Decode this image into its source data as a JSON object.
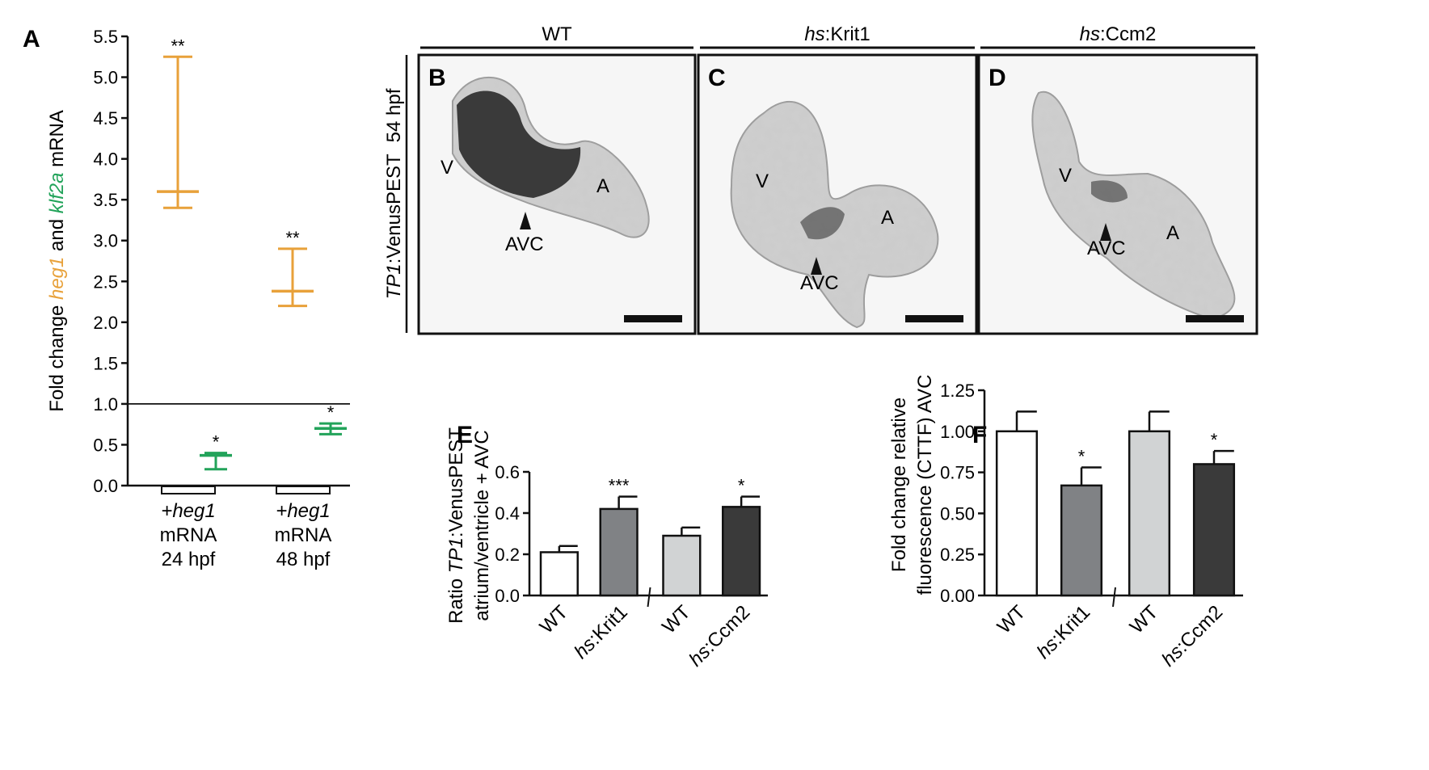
{
  "colors": {
    "heg1": "#e8a13a",
    "klf2a": "#22a35a",
    "ink": "#111111"
  },
  "chart_data": [
    {
      "panel": "A",
      "type": "scatter",
      "ylabel_parts": [
        "Fold change ",
        "heg1",
        " and ",
        "klf2a",
        " mRNA"
      ],
      "ylim": [
        0.0,
        5.5
      ],
      "yticks": [
        "0.0",
        "0.5",
        "1.0",
        "1.5",
        "2.0",
        "2.5",
        "3.0",
        "3.5",
        "4.0",
        "4.5",
        "5.0",
        "5.5"
      ],
      "reference_line": 1.0,
      "groups": [
        {
          "label_italic": "+heg1",
          "label_lines": [
            "mRNA",
            "24 hpf"
          ]
        },
        {
          "label_italic": "+heg1",
          "label_lines": [
            "mRNA",
            "48 hpf"
          ]
        }
      ],
      "series": [
        {
          "name": "heg1",
          "color": "#e8a13a",
          "points": [
            {
              "group": 0,
              "mean": 3.6,
              "low": 3.4,
              "high": 5.25,
              "sig": "**"
            },
            {
              "group": 1,
              "mean": 2.38,
              "low": 2.2,
              "high": 2.9,
              "sig": "**"
            }
          ]
        },
        {
          "name": "klf2a",
          "color": "#22a35a",
          "points": [
            {
              "group": 0,
              "mean": 0.37,
              "low": 0.2,
              "high": 0.4,
              "sig": "*"
            },
            {
              "group": 1,
              "mean": 0.7,
              "low": 0.63,
              "high": 0.76,
              "sig": "*"
            }
          ]
        }
      ]
    },
    {
      "panel": "E",
      "type": "bar",
      "ylabel_lines": [
        [
          "Ratio ",
          "TP1",
          ":VenusPEST"
        ],
        [
          "atrium/ventricle + AVC"
        ]
      ],
      "ylim": [
        0.0,
        0.6
      ],
      "yticks": [
        "0.0",
        "0.2",
        "0.4",
        "0.6"
      ],
      "categories": [
        [
          "",
          "WT"
        ],
        [
          "hs",
          ":Krit1"
        ],
        [
          "",
          "WT"
        ],
        [
          "hs",
          ":Ccm2"
        ]
      ],
      "values": [
        0.21,
        0.42,
        0.29,
        0.43
      ],
      "errors": [
        0.03,
        0.06,
        0.04,
        0.05
      ],
      "sig": [
        "",
        "***",
        "",
        "*"
      ],
      "fills": [
        "#ffffff",
        "#808285",
        "#d1d3d4",
        "#3a3a3a"
      ]
    },
    {
      "panel": "F",
      "type": "bar",
      "ylabel_lines": [
        [
          "Fold change relative"
        ],
        [
          "fluorescence (CTTF) AVC"
        ]
      ],
      "ylim": [
        0.0,
        1.25
      ],
      "yticks": [
        "0.00",
        "0.25",
        "0.50",
        "0.75",
        "1.00",
        "1.25"
      ],
      "categories": [
        [
          "",
          "WT"
        ],
        [
          "hs",
          ":Krit1"
        ],
        [
          "",
          "WT"
        ],
        [
          "hs",
          ":Ccm2"
        ]
      ],
      "values": [
        1.0,
        0.67,
        1.0,
        0.8
      ],
      "errors": [
        0.12,
        0.11,
        0.12,
        0.08
      ],
      "sig": [
        "",
        "*",
        "",
        "*"
      ],
      "fills": [
        "#ffffff",
        "#808285",
        "#d1d3d4",
        "#3a3a3a"
      ]
    }
  ],
  "images": {
    "row_label_italic": "TP1",
    "row_label_rest": ":VenusPEST",
    "row_stage": "54 hpf",
    "columns": [
      {
        "italic": "",
        "text": "WT"
      },
      {
        "italic": "hs",
        "text": ":Krit1"
      },
      {
        "italic": "hs",
        "text": ":Ccm2"
      }
    ],
    "panels": [
      {
        "letter": "B",
        "labels": {
          "v": "V",
          "a": "A",
          "avc": "AVC"
        }
      },
      {
        "letter": "C",
        "labels": {
          "v": "V",
          "a": "A",
          "avc": "AVC"
        }
      },
      {
        "letter": "D",
        "labels": {
          "v": "V",
          "a": "A",
          "avc": "AVC"
        }
      }
    ]
  },
  "panel_letters": {
    "a": "A",
    "e": "E",
    "f": "F"
  }
}
